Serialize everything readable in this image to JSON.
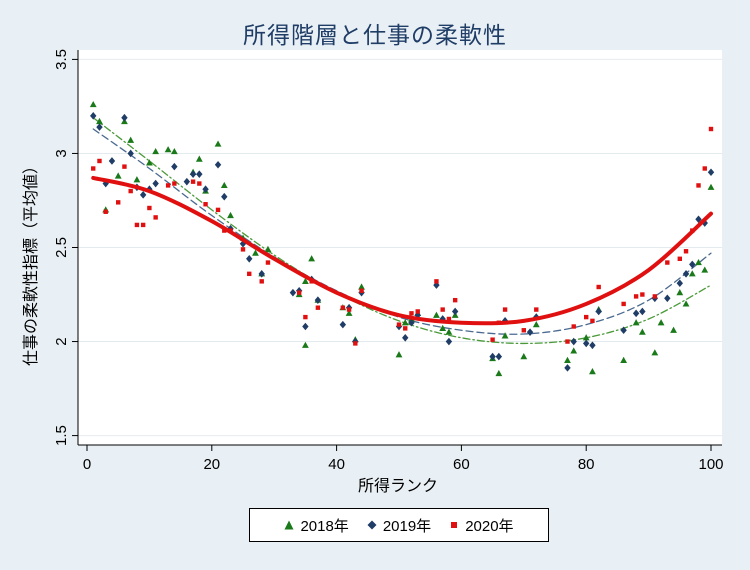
{
  "chart_data": {
    "type": "scatter",
    "title": "所得階層と仕事の柔軟性",
    "xlabel": "所得ランク",
    "ylabel": "仕事の柔軟性指標（平均値）",
    "xlim": [
      0,
      100
    ],
    "ylim": [
      1.45,
      3.55
    ],
    "xticks": [
      0,
      20,
      40,
      60,
      80,
      100
    ],
    "xtick_labels": [
      "0",
      "20",
      "40",
      "60",
      "80",
      "100"
    ],
    "yticks": [
      1.5,
      2,
      2.5,
      3,
      3.5
    ],
    "ytick_labels": [
      "1.5",
      "2",
      "2.5",
      "3",
      "3.5"
    ],
    "grid": "horizontal",
    "legend_position": "bottom",
    "series": [
      {
        "name": "2018年",
        "marker": "triangle",
        "color": "#1a7a1a",
        "points": [
          [
            1,
            3.26
          ],
          [
            2,
            3.17
          ],
          [
            3,
            2.7
          ],
          [
            5,
            2.88
          ],
          [
            6,
            3.17
          ],
          [
            7,
            3.07
          ],
          [
            8,
            2.86
          ],
          [
            10,
            2.95
          ],
          [
            11,
            3.01
          ],
          [
            13,
            3.02
          ],
          [
            14,
            3.01
          ],
          [
            17,
            2.9
          ],
          [
            18,
            2.97
          ],
          [
            19,
            2.8
          ],
          [
            21,
            3.05
          ],
          [
            22,
            2.83
          ],
          [
            23,
            2.67
          ],
          [
            25,
            2.55
          ],
          [
            27,
            2.47
          ],
          [
            28,
            2.36
          ],
          [
            29,
            2.49
          ],
          [
            34,
            2.25
          ],
          [
            35,
            2.32
          ],
          [
            35,
            1.98
          ],
          [
            36,
            2.44
          ],
          [
            37,
            2.22
          ],
          [
            41,
            2.18
          ],
          [
            42,
            2.15
          ],
          [
            43,
            2.01
          ],
          [
            44,
            2.29
          ],
          [
            50,
            1.93
          ],
          [
            51,
            2.1
          ],
          [
            52,
            2.12
          ],
          [
            53,
            2.15
          ],
          [
            56,
            2.14
          ],
          [
            57,
            2.07
          ],
          [
            58,
            2.05
          ],
          [
            59,
            2.14
          ],
          [
            65,
            1.91
          ],
          [
            66,
            1.83
          ],
          [
            67,
            2.03
          ],
          [
            70,
            1.92
          ],
          [
            72,
            2.09
          ],
          [
            77,
            1.9
          ],
          [
            78,
            1.95
          ],
          [
            80,
            2.02
          ],
          [
            81,
            1.84
          ],
          [
            82,
            2.17
          ],
          [
            86,
            1.9
          ],
          [
            88,
            2.1
          ],
          [
            89,
            2.05
          ],
          [
            91,
            1.94
          ],
          [
            92,
            2.1
          ],
          [
            94,
            2.06
          ],
          [
            95,
            2.26
          ],
          [
            96,
            2.2
          ],
          [
            97,
            2.36
          ],
          [
            98,
            2.42
          ],
          [
            99,
            2.38
          ],
          [
            100,
            2.82
          ]
        ]
      },
      {
        "name": "2019年",
        "marker": "diamond",
        "color": "#1f3d66",
        "points": [
          [
            1,
            3.2
          ],
          [
            2,
            3.14
          ],
          [
            3,
            2.84
          ],
          [
            4,
            2.96
          ],
          [
            6,
            3.19
          ],
          [
            7,
            3.0
          ],
          [
            8,
            2.82
          ],
          [
            9,
            2.78
          ],
          [
            10,
            2.81
          ],
          [
            11,
            2.84
          ],
          [
            14,
            2.93
          ],
          [
            16,
            2.85
          ],
          [
            17,
            2.89
          ],
          [
            18,
            2.89
          ],
          [
            19,
            2.81
          ],
          [
            21,
            2.94
          ],
          [
            22,
            2.77
          ],
          [
            23,
            2.6
          ],
          [
            25,
            2.52
          ],
          [
            26,
            2.44
          ],
          [
            28,
            2.36
          ],
          [
            33,
            2.26
          ],
          [
            34,
            2.27
          ],
          [
            35,
            2.08
          ],
          [
            36,
            2.33
          ],
          [
            37,
            2.22
          ],
          [
            41,
            2.09
          ],
          [
            42,
            2.18
          ],
          [
            43,
            2.0
          ],
          [
            44,
            2.26
          ],
          [
            50,
            2.08
          ],
          [
            51,
            2.02
          ],
          [
            52,
            2.1
          ],
          [
            53,
            2.14
          ],
          [
            56,
            2.3
          ],
          [
            57,
            2.12
          ],
          [
            58,
            2.0
          ],
          [
            59,
            2.16
          ],
          [
            65,
            1.92
          ],
          [
            66,
            1.92
          ],
          [
            67,
            2.11
          ],
          [
            71,
            2.05
          ],
          [
            72,
            2.13
          ],
          [
            77,
            1.86
          ],
          [
            78,
            2.0
          ],
          [
            80,
            1.99
          ],
          [
            81,
            1.98
          ],
          [
            82,
            2.16
          ],
          [
            86,
            2.06
          ],
          [
            88,
            2.15
          ],
          [
            89,
            2.16
          ],
          [
            91,
            2.23
          ],
          [
            93,
            2.23
          ],
          [
            95,
            2.31
          ],
          [
            96,
            2.36
          ],
          [
            97,
            2.41
          ],
          [
            98,
            2.65
          ],
          [
            99,
            2.63
          ],
          [
            100,
            2.9
          ]
        ]
      },
      {
        "name": "2020年",
        "marker": "square",
        "color": "#e01010",
        "points": [
          [
            1,
            2.92
          ],
          [
            2,
            2.96
          ],
          [
            3,
            2.69
          ],
          [
            5,
            2.74
          ],
          [
            6,
            2.93
          ],
          [
            7,
            2.8
          ],
          [
            8,
            2.62
          ],
          [
            9,
            2.62
          ],
          [
            10,
            2.71
          ],
          [
            11,
            2.66
          ],
          [
            13,
            2.83
          ],
          [
            14,
            2.84
          ],
          [
            17,
            2.85
          ],
          [
            18,
            2.84
          ],
          [
            19,
            2.73
          ],
          [
            21,
            2.7
          ],
          [
            22,
            2.59
          ],
          [
            23,
            2.59
          ],
          [
            25,
            2.49
          ],
          [
            26,
            2.36
          ],
          [
            28,
            2.32
          ],
          [
            29,
            2.42
          ],
          [
            34,
            2.26
          ],
          [
            35,
            2.13
          ],
          [
            36,
            2.32
          ],
          [
            37,
            2.18
          ],
          [
            41,
            2.18
          ],
          [
            42,
            2.17
          ],
          [
            43,
            1.99
          ],
          [
            44,
            2.27
          ],
          [
            50,
            2.09
          ],
          [
            51,
            2.07
          ],
          [
            52,
            2.15
          ],
          [
            53,
            2.16
          ],
          [
            56,
            2.32
          ],
          [
            57,
            2.17
          ],
          [
            58,
            2.12
          ],
          [
            59,
            2.22
          ],
          [
            65,
            2.01
          ],
          [
            66,
            2.1
          ],
          [
            67,
            2.17
          ],
          [
            70,
            2.06
          ],
          [
            72,
            2.17
          ],
          [
            77,
            2.0
          ],
          [
            78,
            2.08
          ],
          [
            80,
            2.13
          ],
          [
            81,
            2.11
          ],
          [
            82,
            2.29
          ],
          [
            86,
            2.2
          ],
          [
            88,
            2.24
          ],
          [
            89,
            2.25
          ],
          [
            91,
            2.24
          ],
          [
            93,
            2.42
          ],
          [
            95,
            2.44
          ],
          [
            96,
            2.48
          ],
          [
            97,
            2.59
          ],
          [
            98,
            2.83
          ],
          [
            99,
            2.92
          ],
          [
            100,
            3.13
          ]
        ]
      }
    ],
    "fit_lines": [
      {
        "series": "2018年",
        "style": "dashdot",
        "color": "#4a9a3a",
        "width": 1.3,
        "points": [
          [
            1,
            3.19
          ],
          [
            10,
            2.96
          ],
          [
            20,
            2.7
          ],
          [
            30,
            2.46
          ],
          [
            40,
            2.26
          ],
          [
            50,
            2.11
          ],
          [
            60,
            2.02
          ],
          [
            70,
            1.99
          ],
          [
            80,
            2.02
          ],
          [
            90,
            2.12
          ],
          [
            100,
            2.3
          ]
        ]
      },
      {
        "series": "2019年",
        "style": "dash",
        "color": "#4a6a90",
        "width": 1.3,
        "points": [
          [
            1,
            3.13
          ],
          [
            10,
            2.92
          ],
          [
            20,
            2.67
          ],
          [
            30,
            2.45
          ],
          [
            40,
            2.27
          ],
          [
            50,
            2.13
          ],
          [
            60,
            2.06
          ],
          [
            70,
            2.04
          ],
          [
            80,
            2.09
          ],
          [
            90,
            2.22
          ],
          [
            100,
            2.47
          ]
        ]
      },
      {
        "series": "2020年",
        "style": "solid",
        "color": "#e01010",
        "width": 4,
        "points": [
          [
            1,
            2.87
          ],
          [
            10,
            2.8
          ],
          [
            20,
            2.64
          ],
          [
            30,
            2.44
          ],
          [
            40,
            2.26
          ],
          [
            50,
            2.14
          ],
          [
            60,
            2.1
          ],
          [
            70,
            2.11
          ],
          [
            80,
            2.2
          ],
          [
            90,
            2.38
          ],
          [
            100,
            2.68
          ]
        ]
      }
    ]
  }
}
